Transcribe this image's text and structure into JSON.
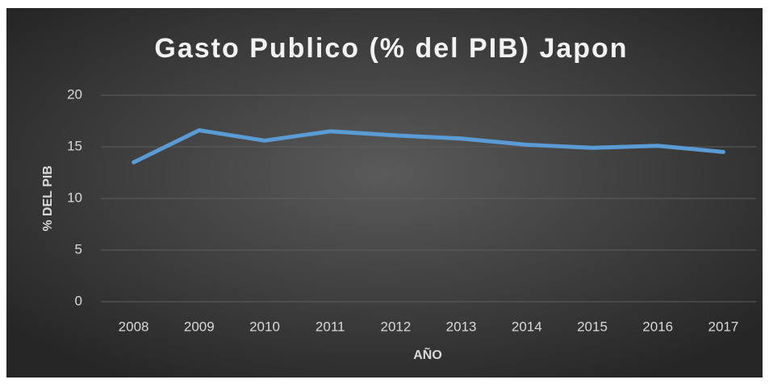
{
  "chart_data": {
    "type": "line",
    "title": "Gasto Publico (% del PIB) Japon",
    "x_label": "AÑO",
    "y_label": "% DEL PIB",
    "categories": [
      "2008",
      "2009",
      "2010",
      "2011",
      "2012",
      "2013",
      "2014",
      "2015",
      "2016",
      "2017"
    ],
    "series": [
      {
        "name": "Gasto Publico",
        "color": "#5b9bd5",
        "values": [
          13.5,
          16.6,
          15.6,
          16.5,
          16.1,
          15.8,
          15.2,
          14.9,
          15.1,
          14.5
        ]
      }
    ],
    "ylim": [
      0,
      20
    ],
    "yticks": [
      0,
      5,
      10,
      15,
      20
    ],
    "grid": true
  }
}
